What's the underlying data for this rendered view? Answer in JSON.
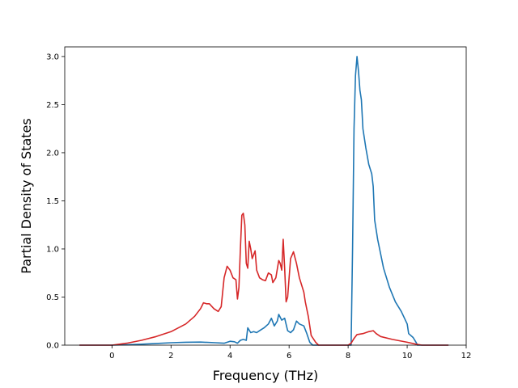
{
  "chart_data": {
    "type": "line",
    "title": "",
    "xlabel": "Frequency (THz)",
    "ylabel": "Partial Density of States",
    "xlim": [
      -1.6,
      12.0
    ],
    "ylim": [
      0.0,
      3.1
    ],
    "xticks": [
      0,
      2,
      4,
      6,
      8,
      10,
      12
    ],
    "yticks": [
      0.0,
      0.5,
      1.0,
      1.5,
      2.0,
      2.5,
      3.0
    ],
    "xtick_labels": [
      "0",
      "2",
      "4",
      "6",
      "8",
      "10",
      "12"
    ],
    "ytick_labels": [
      "0.0",
      "0.5",
      "1.0",
      "1.5",
      "2.0",
      "2.5",
      "3.0"
    ],
    "grid": false,
    "legend": "none",
    "series": [
      {
        "color": "#1f77b4",
        "points": [
          [
            -1.1,
            0.0
          ],
          [
            0.0,
            0.0
          ],
          [
            0.5,
            0.004
          ],
          [
            1.0,
            0.01
          ],
          [
            1.5,
            0.018
          ],
          [
            2.0,
            0.025
          ],
          [
            2.5,
            0.03
          ],
          [
            3.0,
            0.032
          ],
          [
            3.5,
            0.025
          ],
          [
            3.8,
            0.02
          ],
          [
            4.0,
            0.04
          ],
          [
            4.15,
            0.035
          ],
          [
            4.25,
            0.02
          ],
          [
            4.35,
            0.05
          ],
          [
            4.45,
            0.06
          ],
          [
            4.55,
            0.05
          ],
          [
            4.6,
            0.18
          ],
          [
            4.7,
            0.13
          ],
          [
            4.8,
            0.14
          ],
          [
            4.9,
            0.13
          ],
          [
            5.0,
            0.15
          ],
          [
            5.15,
            0.18
          ],
          [
            5.3,
            0.22
          ],
          [
            5.4,
            0.28
          ],
          [
            5.5,
            0.2
          ],
          [
            5.6,
            0.25
          ],
          [
            5.65,
            0.32
          ],
          [
            5.75,
            0.26
          ],
          [
            5.85,
            0.28
          ],
          [
            5.95,
            0.15
          ],
          [
            6.05,
            0.13
          ],
          [
            6.15,
            0.16
          ],
          [
            6.25,
            0.25
          ],
          [
            6.35,
            0.22
          ],
          [
            6.5,
            0.2
          ],
          [
            6.6,
            0.12
          ],
          [
            6.7,
            0.03
          ],
          [
            6.8,
            0.0
          ],
          [
            8.1,
            0.0
          ],
          [
            8.15,
            1.0
          ],
          [
            8.2,
            2.25
          ],
          [
            8.25,
            2.8
          ],
          [
            8.3,
            3.0
          ],
          [
            8.35,
            2.85
          ],
          [
            8.4,
            2.65
          ],
          [
            8.45,
            2.55
          ],
          [
            8.5,
            2.25
          ],
          [
            8.6,
            2.05
          ],
          [
            8.7,
            1.88
          ],
          [
            8.8,
            1.78
          ],
          [
            8.85,
            1.65
          ],
          [
            8.9,
            1.3
          ],
          [
            9.0,
            1.1
          ],
          [
            9.2,
            0.8
          ],
          [
            9.4,
            0.6
          ],
          [
            9.6,
            0.45
          ],
          [
            9.8,
            0.35
          ],
          [
            10.0,
            0.22
          ],
          [
            10.05,
            0.12
          ],
          [
            10.2,
            0.08
          ],
          [
            10.3,
            0.03
          ],
          [
            10.35,
            0.0
          ],
          [
            11.4,
            0.0
          ]
        ]
      },
      {
        "color": "#d62728",
        "points": [
          [
            -1.1,
            0.0
          ],
          [
            0.0,
            0.0
          ],
          [
            0.5,
            0.02
          ],
          [
            1.0,
            0.05
          ],
          [
            1.5,
            0.09
          ],
          [
            2.0,
            0.14
          ],
          [
            2.5,
            0.22
          ],
          [
            2.8,
            0.3
          ],
          [
            3.0,
            0.38
          ],
          [
            3.1,
            0.44
          ],
          [
            3.2,
            0.43
          ],
          [
            3.3,
            0.43
          ],
          [
            3.45,
            0.38
          ],
          [
            3.6,
            0.35
          ],
          [
            3.7,
            0.4
          ],
          [
            3.75,
            0.55
          ],
          [
            3.8,
            0.7
          ],
          [
            3.9,
            0.82
          ],
          [
            4.0,
            0.78
          ],
          [
            4.1,
            0.7
          ],
          [
            4.2,
            0.68
          ],
          [
            4.25,
            0.48
          ],
          [
            4.3,
            0.6
          ],
          [
            4.35,
            1.0
          ],
          [
            4.4,
            1.35
          ],
          [
            4.45,
            1.37
          ],
          [
            4.5,
            1.25
          ],
          [
            4.55,
            0.85
          ],
          [
            4.6,
            0.8
          ],
          [
            4.65,
            1.08
          ],
          [
            4.7,
            1.0
          ],
          [
            4.75,
            0.9
          ],
          [
            4.85,
            0.98
          ],
          [
            4.9,
            0.78
          ],
          [
            5.0,
            0.7
          ],
          [
            5.1,
            0.68
          ],
          [
            5.2,
            0.67
          ],
          [
            5.3,
            0.75
          ],
          [
            5.4,
            0.73
          ],
          [
            5.45,
            0.65
          ],
          [
            5.55,
            0.7
          ],
          [
            5.65,
            0.88
          ],
          [
            5.7,
            0.85
          ],
          [
            5.75,
            0.78
          ],
          [
            5.8,
            1.1
          ],
          [
            5.85,
            0.8
          ],
          [
            5.9,
            0.45
          ],
          [
            5.95,
            0.5
          ],
          [
            6.05,
            0.9
          ],
          [
            6.15,
            0.97
          ],
          [
            6.25,
            0.85
          ],
          [
            6.35,
            0.7
          ],
          [
            6.5,
            0.55
          ],
          [
            6.55,
            0.45
          ],
          [
            6.65,
            0.3
          ],
          [
            6.75,
            0.1
          ],
          [
            6.9,
            0.03
          ],
          [
            7.0,
            0.0
          ],
          [
            8.0,
            0.0
          ],
          [
            8.1,
            0.02
          ],
          [
            8.2,
            0.07
          ],
          [
            8.3,
            0.11
          ],
          [
            8.5,
            0.12
          ],
          [
            8.7,
            0.14
          ],
          [
            8.85,
            0.15
          ],
          [
            8.95,
            0.12
          ],
          [
            9.1,
            0.09
          ],
          [
            9.5,
            0.06
          ],
          [
            10.0,
            0.03
          ],
          [
            10.3,
            0.01
          ],
          [
            10.5,
            0.0
          ],
          [
            11.4,
            0.0
          ]
        ]
      }
    ]
  }
}
